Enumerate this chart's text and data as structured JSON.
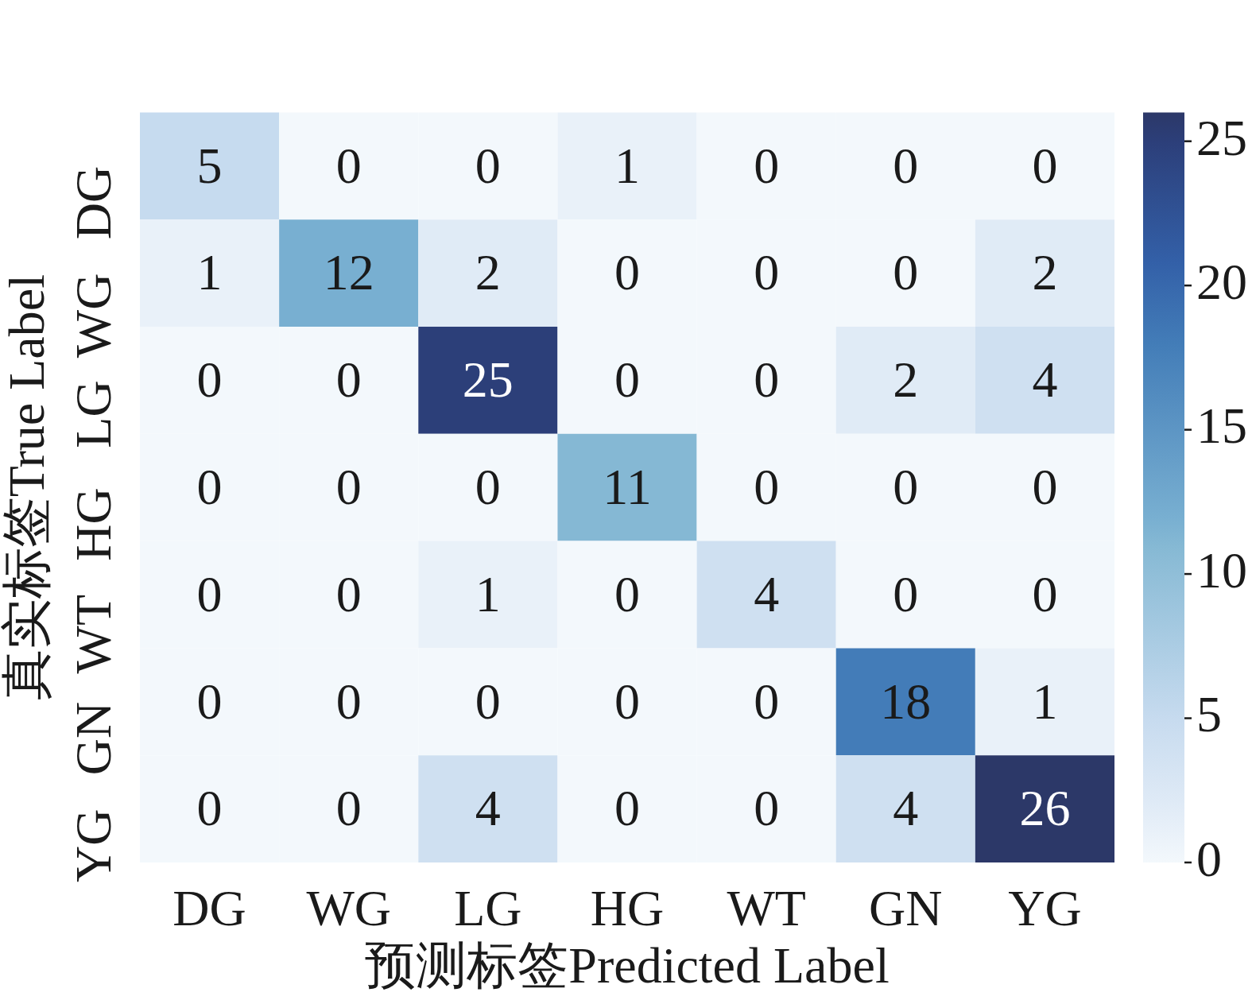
{
  "chart_data": {
    "type": "heatmap",
    "xlabel": "预测标签Predicted Label",
    "ylabel": "真实标签True Label",
    "categories": [
      "DG",
      "WG",
      "LG",
      "HG",
      "WT",
      "GN",
      "YG"
    ],
    "y_categories": [
      "DG",
      "WG",
      "LG",
      "HG",
      "WT",
      "GN",
      "YG"
    ],
    "cells": [
      [
        5,
        0,
        0,
        1,
        0,
        0,
        0
      ],
      [
        1,
        12,
        2,
        0,
        0,
        0,
        2
      ],
      [
        0,
        0,
        25,
        0,
        0,
        2,
        4
      ],
      [
        0,
        0,
        0,
        11,
        0,
        0,
        0
      ],
      [
        0,
        0,
        1,
        0,
        4,
        0,
        0
      ],
      [
        0,
        0,
        0,
        0,
        0,
        18,
        1
      ],
      [
        0,
        0,
        4,
        0,
        0,
        4,
        26
      ]
    ],
    "clim": [
      0,
      26
    ],
    "cticks": [
      0,
      5,
      10,
      15,
      20,
      25
    ],
    "data_labels": true
  }
}
